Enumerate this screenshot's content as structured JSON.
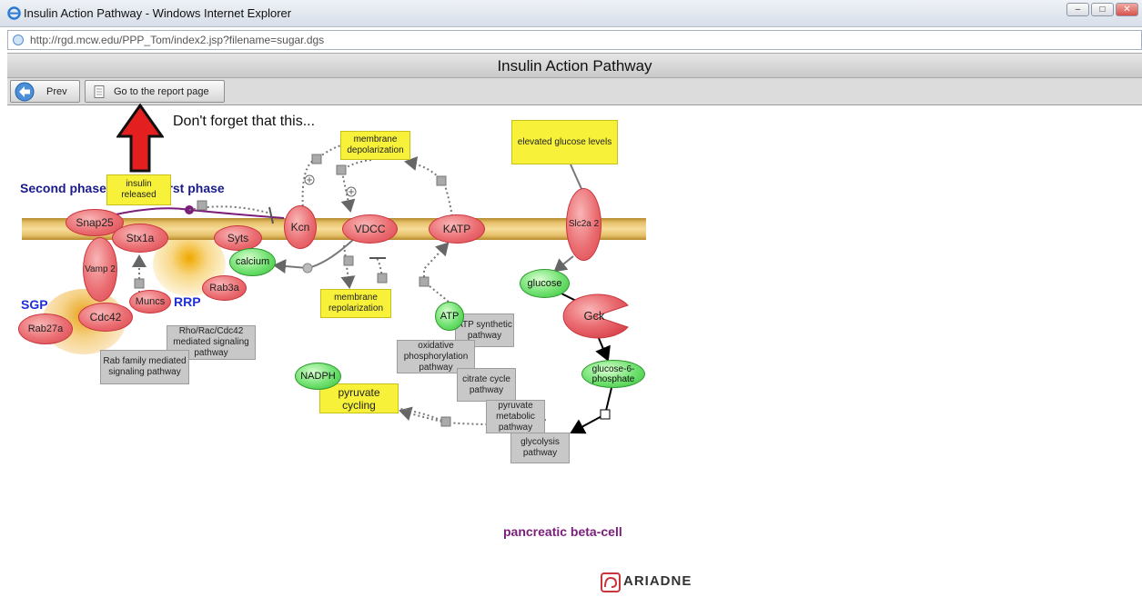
{
  "window": {
    "title": "Insulin Action Pathway - Windows Internet Explorer",
    "url": "http://rgd.mcw.edu/PPP_Tom/index2.jsp?filename=sugar.dgs"
  },
  "page": {
    "title": "Insulin Action Pathway",
    "toolbar": {
      "prev_label": "Prev",
      "report_label": "Go to the report page"
    }
  },
  "diagram": {
    "note": "Don't forget that this...",
    "phase_labels": {
      "second": "Second phase",
      "first": "First phase",
      "sgp": "SGP",
      "rrp": "RRP"
    },
    "yellow_boxes": {
      "insulin_released": "insulin released",
      "membrane_depolarization": "membrane depolarization",
      "membrane_repolarization": "membrane repolarization",
      "elevated_glucose": "elevated glucose levels",
      "pyruvate_cycling": "pyruvate cycling"
    },
    "gray_boxes": {
      "rho_rac": "Rho/Rac/Cdc42 mediated signaling pathway",
      "rab_family": "Rab family mediated signaling pathway",
      "atp_synthetic": "ATP synthetic pathway",
      "oxidative": "oxidative phosphorylation pathway",
      "citrate": "citrate cycle pathway",
      "pyruvate_metabolic": "pyruvate metabolic pathway",
      "glycolysis": "glycolysis pathway"
    },
    "proteins": {
      "snap25": "Snap25",
      "stx1a": "Stx1a",
      "syts": "Syts",
      "kcn": "Kcn",
      "vdcc": "VDCC",
      "katp": "KATP",
      "slc2a2": "Slc2a 2",
      "vamp2": "Vamp 2",
      "cdc42": "Cdc42",
      "rab27a": "Rab27a",
      "muncs": "Muncs",
      "rab3a": "Rab3a",
      "gck": "Gck"
    },
    "metabolites": {
      "calcium": "calcium",
      "glucose": "glucose",
      "atp": "ATP",
      "nadph": "NADPH",
      "glucose6p": "glucose-6- phosphate"
    },
    "cell_label": "pancreatic beta-cell",
    "logo_text": "ARIADNE"
  },
  "colors": {
    "arrow_red": "#e41f1f",
    "label_blue": "#1a1a8c",
    "cell_purple": "#7a1e7a"
  }
}
